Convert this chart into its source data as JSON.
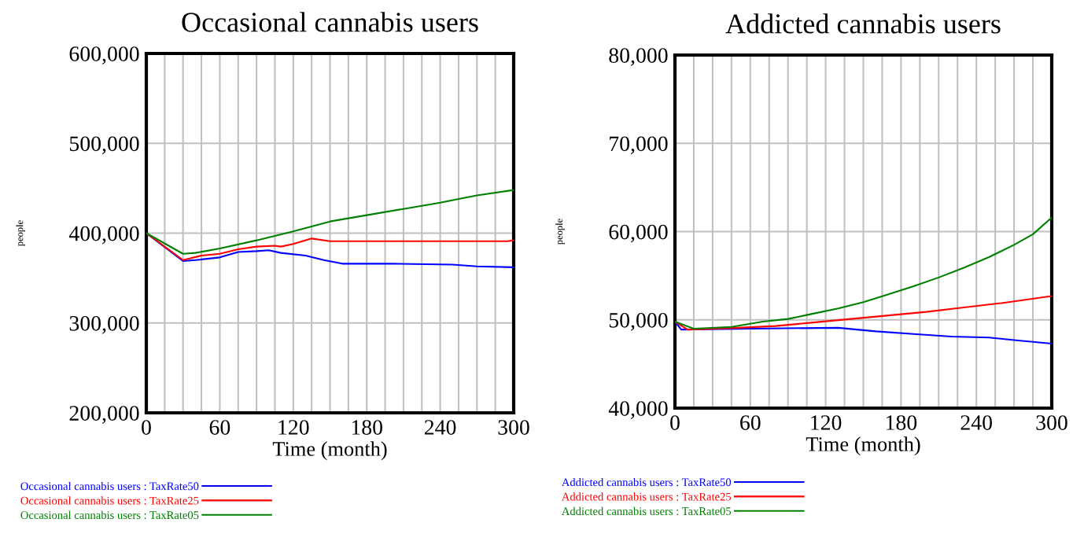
{
  "chart_data": [
    {
      "type": "line",
      "title": "Occasional cannabis users",
      "xlabel": "Time (month)",
      "ylabel": "people",
      "xlim": [
        0,
        300
      ],
      "ylim": [
        200000,
        600000
      ],
      "xticks": [
        0,
        {
          "value": 15,
          "label": null
        },
        60,
        {
          "value": 30,
          "label": null
        },
        {
          "value": 45,
          "label": null
        },
        {
          "value": 75,
          "label": null
        },
        {
          "value": 90,
          "label": null
        },
        {
          "value": 105,
          "label": null
        },
        120,
        {
          "value": 135,
          "label": null
        },
        {
          "value": 150,
          "label": null
        },
        {
          "value": 165,
          "label": null
        },
        180,
        {
          "value": 195,
          "label": null
        },
        {
          "value": 210,
          "label": null
        },
        {
          "value": 225,
          "label": null
        },
        240,
        {
          "value": 255,
          "label": null
        },
        {
          "value": 270,
          "label": null
        },
        {
          "value": 285,
          "label": null
        },
        300
      ],
      "yticks": [
        {
          "value": 200000,
          "label": "200,000"
        },
        {
          "value": 300000,
          "label": "300,000"
        },
        {
          "value": 400000,
          "label": "400,000"
        },
        {
          "value": 500000,
          "label": "500,000"
        },
        {
          "value": 600000,
          "label": "600,000"
        }
      ],
      "grid": true,
      "legend": "bottom",
      "series": [
        {
          "name": "Occasional cannabis users : TaxRate50",
          "color": "#0000ff",
          "x": [
            0,
            30,
            40,
            60,
            75,
            90,
            100,
            110,
            130,
            145,
            160,
            200,
            250,
            270,
            300
          ],
          "values": [
            400000,
            369000,
            370000,
            373000,
            379000,
            380000,
            381000,
            378000,
            375000,
            370000,
            366000,
            366000,
            365000,
            363000,
            362000
          ]
        },
        {
          "name": "Occasional cannabis users : TaxRate25",
          "color": "#ff0000",
          "x": [
            0,
            30,
            45,
            60,
            75,
            90,
            105,
            110,
            120,
            135,
            150,
            160,
            295,
            300
          ],
          "values": [
            400000,
            370000,
            375000,
            377000,
            382000,
            385000,
            386000,
            385000,
            388000,
            394000,
            391000,
            391000,
            391000,
            392000
          ]
        },
        {
          "name": "Occasional cannabis users : TaxRate05",
          "color": "#008000",
          "x": [
            0,
            30,
            40,
            60,
            90,
            120,
            150,
            180,
            210,
            240,
            270,
            300
          ],
          "values": [
            400000,
            377000,
            378000,
            383000,
            392000,
            402000,
            413000,
            420000,
            427000,
            434000,
            442000,
            448000
          ]
        }
      ]
    },
    {
      "type": "line",
      "title": "Addicted cannabis users",
      "xlabel": "Time (month)",
      "ylabel": "people",
      "xlim": [
        0,
        300
      ],
      "ylim": [
        40000,
        80000
      ],
      "xticks": [
        0,
        {
          "value": 15,
          "label": null
        },
        60,
        {
          "value": 30,
          "label": null
        },
        {
          "value": 45,
          "label": null
        },
        {
          "value": 75,
          "label": null
        },
        {
          "value": 90,
          "label": null
        },
        {
          "value": 105,
          "label": null
        },
        120,
        {
          "value": 135,
          "label": null
        },
        {
          "value": 150,
          "label": null
        },
        {
          "value": 165,
          "label": null
        },
        180,
        {
          "value": 195,
          "label": null
        },
        {
          "value": 210,
          "label": null
        },
        {
          "value": 225,
          "label": null
        },
        240,
        {
          "value": 255,
          "label": null
        },
        {
          "value": 270,
          "label": null
        },
        {
          "value": 285,
          "label": null
        },
        300
      ],
      "yticks": [
        {
          "value": 40000,
          "label": "40,000"
        },
        {
          "value": 50000,
          "label": "50,000"
        },
        {
          "value": 60000,
          "label": "60,000"
        },
        {
          "value": 70000,
          "label": "70,000"
        },
        {
          "value": 80000,
          "label": "80,000"
        }
      ],
      "grid": true,
      "legend": "bottom",
      "series": [
        {
          "name": "Addicted cannabis users : TaxRate50",
          "color": "#0000ff",
          "x": [
            0,
            5,
            60,
            130,
            160,
            190,
            220,
            250,
            270,
            300
          ],
          "values": [
            49800,
            48900,
            49000,
            49100,
            48700,
            48400,
            48100,
            48000,
            47700,
            47300
          ]
        },
        {
          "name": "Addicted cannabis users : TaxRate25",
          "color": "#ff0000",
          "x": [
            0,
            10,
            50,
            80,
            110,
            140,
            170,
            200,
            230,
            260,
            300
          ],
          "values": [
            49800,
            48900,
            49100,
            49300,
            49700,
            50100,
            50500,
            50900,
            51400,
            51900,
            52700
          ]
        },
        {
          "name": "Addicted cannabis users : TaxRate05",
          "color": "#008000",
          "x": [
            0,
            15,
            45,
            70,
            90,
            110,
            130,
            150,
            170,
            190,
            210,
            230,
            250,
            270,
            285,
            300
          ],
          "values": [
            49800,
            49000,
            49200,
            49800,
            50100,
            50700,
            51300,
            52000,
            52900,
            53800,
            54800,
            55900,
            57100,
            58500,
            59700,
            61600
          ]
        }
      ]
    }
  ]
}
